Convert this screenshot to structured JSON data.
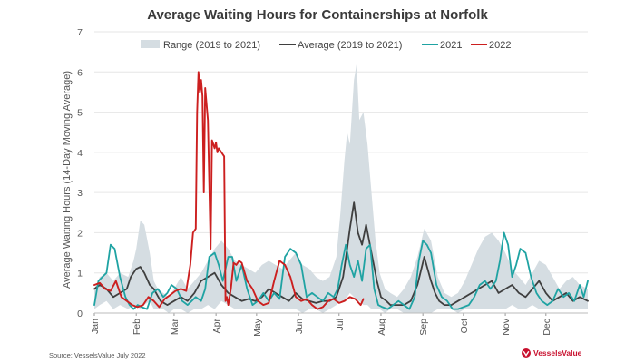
{
  "source": "Source: VesselsValue July 2022",
  "brand": "VesselsValue",
  "colors": {
    "range": "#d5dde2",
    "average": "#3f3f3f",
    "y2021": "#1fa3a3",
    "y2022": "#cc1f1f",
    "brand": "#c8102e"
  },
  "chart_data": {
    "type": "line",
    "title": "Average Waiting Hours for Containerships at Norfolk",
    "ylabel": "Average Waiting Hours (14-Day Moving Average)",
    "xlabel": "",
    "ylim": [
      0,
      7
    ],
    "yticks": [
      0,
      1,
      2,
      3,
      4,
      5,
      6,
      7
    ],
    "xlim": [
      1,
      366
    ],
    "months": [
      {
        "label": "Jan",
        "day": 1
      },
      {
        "label": "Feb",
        "day": 32
      },
      {
        "label": "Mar",
        "day": 60
      },
      {
        "label": "Apr",
        "day": 91
      },
      {
        "label": "May",
        "day": 121
      },
      {
        "label": "Jun",
        "day": 152
      },
      {
        "label": "Jul",
        "day": 182
      },
      {
        "label": "Aug",
        "day": 213
      },
      {
        "label": "Sep",
        "day": 244
      },
      {
        "label": "Oct",
        "day": 274
      },
      {
        "label": "Nov",
        "day": 305
      },
      {
        "label": "Dec",
        "day": 335
      }
    ],
    "legend": [
      {
        "key": "range",
        "label": "Range (2019 to 2021)"
      },
      {
        "key": "average",
        "label": "Average (2019 to 2021)"
      },
      {
        "key": "y2021",
        "label": "2021"
      },
      {
        "key": "y2022",
        "label": "2022"
      }
    ],
    "range": {
      "name": "Range (2019 to 2021)",
      "x": [
        1,
        5,
        10,
        15,
        20,
        26,
        30,
        32,
        35,
        38,
        42,
        45,
        48,
        52,
        56,
        60,
        65,
        70,
        75,
        80,
        85,
        90,
        95,
        100,
        105,
        110,
        115,
        120,
        125,
        130,
        135,
        140,
        145,
        150,
        155,
        160,
        165,
        170,
        175,
        180,
        183,
        186,
        188,
        190,
        193,
        195,
        197,
        200,
        203,
        206,
        209,
        212,
        216,
        220,
        225,
        230,
        235,
        240,
        245,
        250,
        255,
        260,
        265,
        270,
        275,
        280,
        285,
        290,
        295,
        300,
        305,
        310,
        315,
        320,
        325,
        330,
        335,
        340,
        345,
        350,
        355,
        360,
        366
      ],
      "low": [
        0.1,
        0.2,
        0.3,
        0.1,
        0.2,
        0.1,
        0.2,
        0.2,
        0.1,
        0.2,
        0.3,
        0.1,
        0.1,
        0.1,
        0.0,
        0.1,
        0.1,
        0.0,
        0.1,
        0.1,
        0.2,
        0.1,
        0.3,
        0.2,
        0.1,
        0.1,
        0.1,
        0.1,
        0.1,
        0.1,
        0.1,
        0.1,
        0.1,
        0.1,
        0.0,
        0.1,
        0.1,
        0.0,
        0.1,
        0.2,
        0.3,
        0.3,
        0.4,
        0.5,
        0.4,
        0.3,
        0.3,
        0.2,
        0.2,
        0.1,
        0.1,
        0.1,
        0.0,
        0.1,
        0.1,
        0.0,
        0.0,
        0.0,
        0.0,
        0.0,
        0.1,
        0.1,
        0.1,
        0.0,
        0.1,
        0.1,
        0.1,
        0.1,
        0.1,
        0.1,
        0.1,
        0.2,
        0.1,
        0.1,
        0.2,
        0.1,
        0.1,
        0.1,
        0.1,
        0.1,
        0.1,
        0.1,
        0.1
      ],
      "high": [
        0.6,
        0.9,
        1.0,
        0.8,
        1.0,
        0.9,
        1.3,
        1.6,
        2.3,
        2.2,
        1.5,
        0.8,
        0.6,
        0.5,
        0.4,
        0.6,
        0.9,
        0.6,
        0.8,
        1.0,
        1.3,
        1.6,
        1.8,
        1.6,
        1.3,
        1.2,
        1.1,
        1.0,
        1.2,
        1.3,
        1.2,
        1.1,
        1.3,
        1.5,
        1.2,
        1.1,
        0.9,
        0.8,
        0.9,
        1.4,
        2.5,
        3.8,
        4.5,
        4.2,
        5.8,
        6.2,
        4.8,
        5.0,
        4.2,
        3.0,
        1.8,
        1.0,
        0.6,
        0.5,
        0.4,
        0.6,
        0.9,
        1.4,
        2.1,
        1.8,
        0.9,
        0.5,
        0.4,
        0.5,
        0.8,
        1.2,
        1.6,
        1.9,
        2.0,
        1.8,
        1.5,
        1.1,
        0.9,
        0.7,
        1.0,
        1.3,
        1.2,
        0.9,
        0.6,
        0.8,
        0.9,
        0.7,
        0.6
      ]
    },
    "average": {
      "name": "Average (2019 to 2021)",
      "x": [
        1,
        5,
        10,
        15,
        20,
        25,
        28,
        32,
        35,
        38,
        42,
        45,
        50,
        55,
        60,
        65,
        70,
        75,
        80,
        85,
        90,
        95,
        100,
        105,
        110,
        115,
        120,
        125,
        130,
        135,
        140,
        145,
        150,
        155,
        160,
        165,
        170,
        175,
        180,
        185,
        188,
        190,
        193,
        196,
        199,
        202,
        206,
        210,
        213,
        217,
        220,
        225,
        230,
        235,
        240,
        245,
        250,
        253,
        256,
        260,
        265,
        270,
        275,
        280,
        285,
        290,
        295,
        300,
        305,
        310,
        315,
        320,
        325,
        330,
        335,
        340,
        345,
        350,
        355,
        360,
        366
      ],
      "y": [
        0.6,
        0.7,
        0.6,
        0.4,
        0.5,
        0.6,
        0.9,
        1.1,
        1.15,
        1.0,
        0.7,
        0.6,
        0.3,
        0.2,
        0.3,
        0.4,
        0.3,
        0.5,
        0.8,
        0.9,
        1.0,
        0.7,
        0.5,
        0.4,
        0.3,
        0.35,
        0.3,
        0.4,
        0.6,
        0.5,
        0.4,
        0.3,
        0.5,
        0.35,
        0.3,
        0.25,
        0.3,
        0.3,
        0.4,
        0.9,
        1.6,
        2.1,
        2.75,
        2.0,
        1.7,
        2.2,
        1.5,
        0.8,
        0.4,
        0.3,
        0.2,
        0.2,
        0.2,
        0.3,
        0.7,
        1.4,
        0.8,
        0.5,
        0.3,
        0.2,
        0.2,
        0.3,
        0.4,
        0.5,
        0.6,
        0.7,
        0.8,
        0.5,
        0.6,
        0.7,
        0.5,
        0.4,
        0.6,
        0.8,
        0.5,
        0.3,
        0.4,
        0.5,
        0.3,
        0.4,
        0.3
      ]
    },
    "y2021": {
      "name": "2021",
      "x": [
        1,
        4,
        7,
        10,
        13,
        16,
        20,
        24,
        27,
        30,
        33,
        36,
        40,
        44,
        48,
        52,
        55,
        58,
        62,
        66,
        70,
        73,
        76,
        80,
        83,
        86,
        90,
        93,
        96,
        100,
        103,
        106,
        110,
        114,
        118,
        122,
        126,
        130,
        134,
        138,
        142,
        146,
        150,
        154,
        158,
        162,
        166,
        170,
        174,
        178,
        181,
        184,
        187,
        190,
        193,
        196,
        199,
        202,
        205,
        208,
        211,
        214,
        218,
        222,
        226,
        230,
        234,
        238,
        241,
        244,
        247,
        250,
        254,
        258,
        262,
        266,
        270,
        274,
        278,
        282,
        286,
        290,
        294,
        298,
        301,
        304,
        307,
        310,
        313,
        316,
        320,
        324,
        328,
        332,
        336,
        340,
        344,
        348,
        352,
        356,
        360,
        363,
        366
      ],
      "y": [
        0.2,
        0.8,
        0.9,
        1.0,
        1.7,
        1.6,
        0.9,
        0.4,
        0.2,
        0.1,
        0.2,
        0.15,
        0.1,
        0.5,
        0.6,
        0.4,
        0.5,
        0.7,
        0.6,
        0.3,
        0.2,
        0.3,
        0.4,
        0.3,
        0.6,
        1.4,
        1.5,
        1.2,
        0.8,
        1.4,
        1.4,
        0.8,
        1.2,
        0.6,
        0.2,
        0.3,
        0.5,
        0.3,
        0.5,
        0.35,
        1.4,
        1.6,
        1.5,
        1.2,
        0.4,
        0.5,
        0.4,
        0.3,
        0.5,
        0.4,
        0.6,
        1.2,
        1.7,
        1.2,
        0.9,
        1.3,
        0.8,
        1.6,
        1.7,
        0.6,
        0.2,
        0.15,
        0.1,
        0.2,
        0.3,
        0.2,
        0.1,
        0.4,
        1.3,
        1.8,
        1.7,
        1.5,
        0.7,
        0.4,
        0.3,
        0.1,
        0.1,
        0.15,
        0.2,
        0.4,
        0.7,
        0.8,
        0.6,
        0.8,
        1.3,
        2.0,
        1.7,
        0.9,
        1.2,
        1.6,
        1.5,
        0.9,
        0.5,
        0.3,
        0.2,
        0.3,
        0.6,
        0.4,
        0.5,
        0.3,
        0.7,
        0.4,
        0.8
      ]
    },
    "y2022": {
      "name": "2022",
      "x": [
        1,
        5,
        9,
        13,
        17,
        21,
        25,
        29,
        33,
        37,
        41,
        45,
        49,
        53,
        57,
        61,
        65,
        69,
        72,
        74,
        76,
        77,
        78,
        79,
        80,
        81,
        82,
        83,
        85,
        87,
        88,
        89,
        90,
        91,
        92,
        93,
        95,
        97,
        98,
        99,
        100,
        102,
        104,
        106,
        108,
        110,
        114,
        118,
        122,
        126,
        130,
        134,
        138,
        142,
        146,
        150,
        154,
        158,
        162,
        166,
        170,
        174,
        178,
        182,
        186,
        190,
        194,
        198,
        200
      ],
      "y": [
        0.7,
        0.75,
        0.6,
        0.55,
        0.8,
        0.4,
        0.3,
        0.2,
        0.15,
        0.2,
        0.4,
        0.3,
        0.15,
        0.35,
        0.45,
        0.55,
        0.6,
        0.55,
        1.2,
        2.0,
        2.1,
        5.0,
        6.0,
        5.5,
        5.8,
        5.4,
        3.0,
        5.6,
        4.8,
        1.6,
        4.3,
        4.2,
        4.1,
        4.25,
        4.0,
        4.1,
        4.0,
        3.9,
        0.3,
        0.4,
        0.2,
        0.6,
        1.25,
        1.2,
        1.3,
        1.25,
        0.8,
        0.6,
        0.3,
        0.2,
        0.25,
        0.8,
        1.3,
        1.2,
        0.9,
        0.4,
        0.3,
        0.35,
        0.2,
        0.1,
        0.15,
        0.3,
        0.35,
        0.25,
        0.3,
        0.4,
        0.35,
        0.2,
        0.35
      ]
    }
  }
}
